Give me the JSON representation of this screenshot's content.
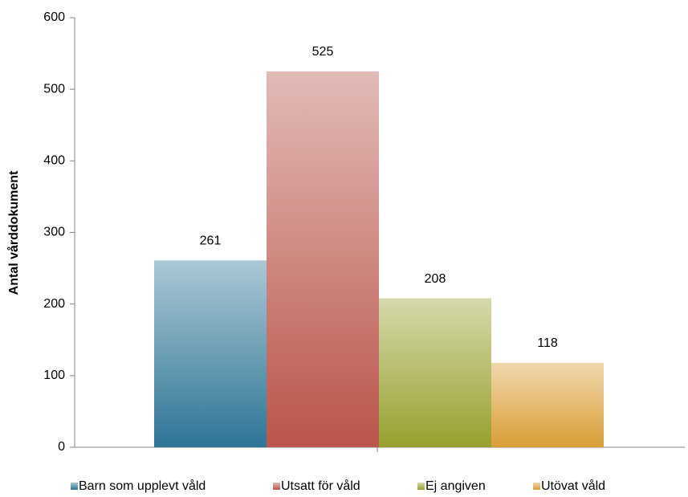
{
  "chart_data": {
    "type": "bar",
    "y_label": "Antal vårddokument",
    "categories": [
      null
    ],
    "series": [
      {
        "name": "Barn som upplevt våld",
        "color": "#2e7596",
        "values": [
          261
        ]
      },
      {
        "name": "Utsatt för våld",
        "color": "#b9554a",
        "values": [
          525
        ]
      },
      {
        "name": "Ej angiven",
        "color": "#98a02e",
        "values": [
          208
        ]
      },
      {
        "name": "Utövat våld",
        "color": "#d99e34",
        "values": [
          118
        ]
      }
    ],
    "ylim": [
      0,
      600
    ],
    "yticks": [
      0,
      100,
      200,
      300,
      400,
      500,
      600
    ],
    "legend": "bottom"
  }
}
